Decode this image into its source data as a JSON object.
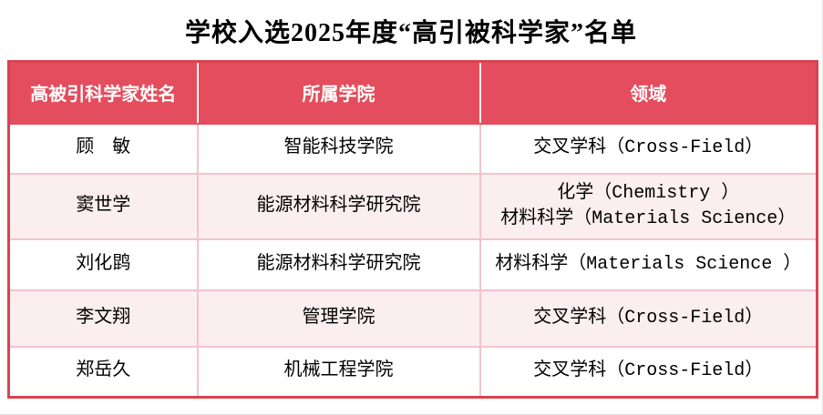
{
  "page": {
    "title": "学校入选2025年度“高引被科学家”名单"
  },
  "theme": {
    "header_bg": "#e44d5d",
    "header_text": "#ffffff",
    "row_alt_bg": "#fbeef0",
    "outer_border": "#d8434f",
    "inner_border": "#f3c3cb",
    "body_text": "#000000",
    "title_text": "#000000"
  },
  "table": {
    "columns": [
      "高被引科学家姓名",
      "所属学院",
      "领域"
    ],
    "rows": [
      {
        "name": "顾　敏",
        "college": "智能科技学院",
        "field": "交叉学科（Cross-Field）",
        "field_line2": ""
      },
      {
        "name": "窦世学",
        "college": "能源材料科学研究院",
        "field": "化学（Chemistry ）",
        "field_line2": "材料科学（Materials Science）"
      },
      {
        "name": "刘化鹍",
        "college": "能源材料科学研究院",
        "field": "材料科学（Materials Science ）",
        "field_line2": ""
      },
      {
        "name": "李文翔",
        "college": "管理学院",
        "field": "交叉学科（Cross-Field）",
        "field_line2": ""
      },
      {
        "name": "郑岳久",
        "college": "机械工程学院",
        "field": "交叉学科（Cross-Field）",
        "field_line2": ""
      }
    ]
  }
}
